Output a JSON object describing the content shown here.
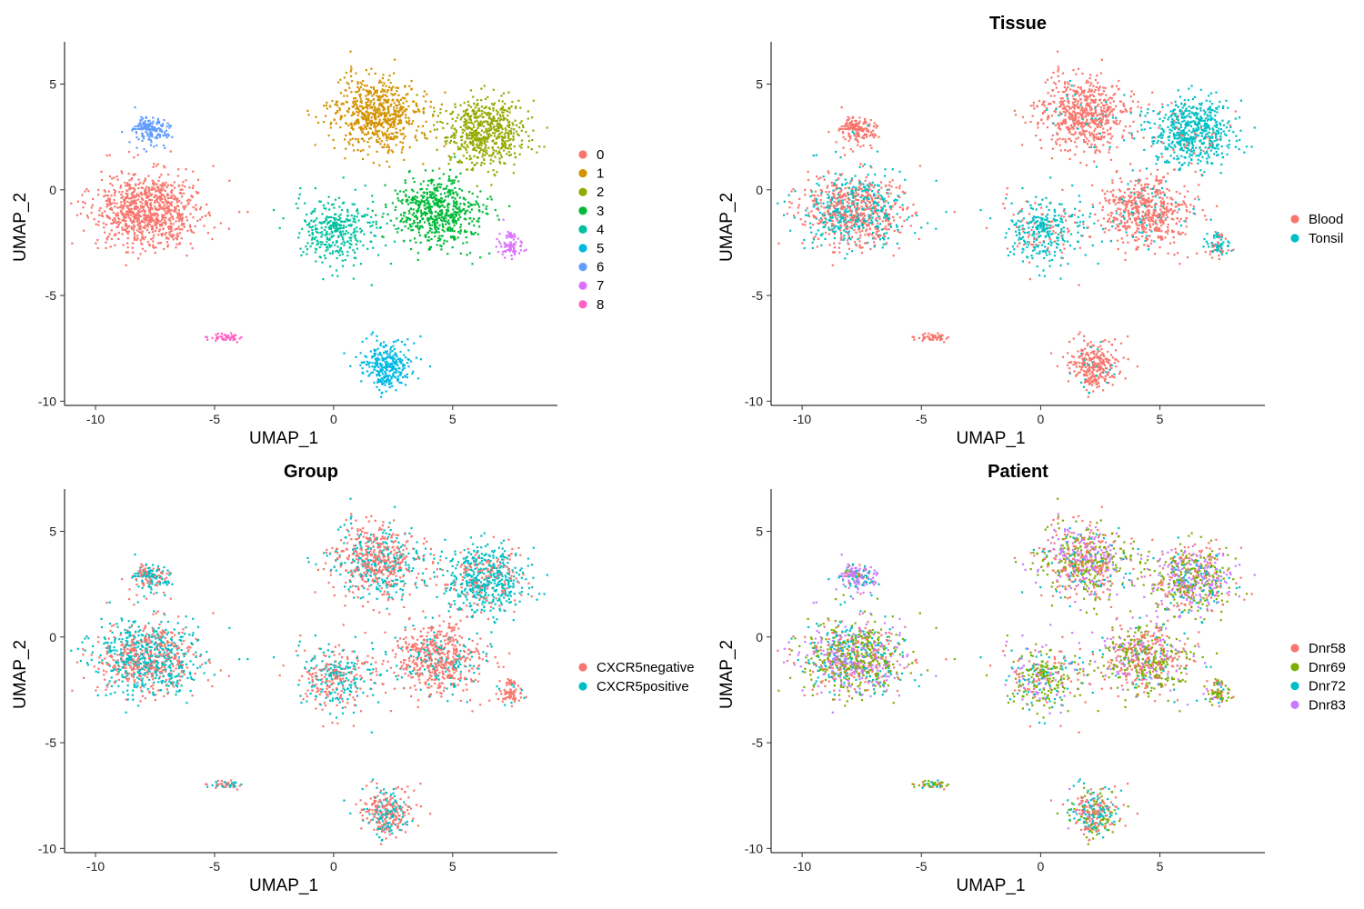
{
  "chart_data": [
    {
      "type": "scatter",
      "title": "",
      "xlabel": "UMAP_1",
      "ylabel": "UMAP_2",
      "xlim": [
        -11.3,
        9.4
      ],
      "ylim": [
        -10.2,
        7.0
      ],
      "xticks": [
        -10,
        -5,
        0,
        5
      ],
      "yticks": [
        -10,
        -5,
        0,
        5
      ],
      "grid": false,
      "legend_position": "right",
      "legend": [
        {
          "label": "0",
          "color": "#F8766D"
        },
        {
          "label": "1",
          "color": "#D39200"
        },
        {
          "label": "2",
          "color": "#93AA00"
        },
        {
          "label": "3",
          "color": "#00BA38"
        },
        {
          "label": "4",
          "color": "#00C19F"
        },
        {
          "label": "5",
          "color": "#00B9E3"
        },
        {
          "label": "6",
          "color": "#619CFF"
        },
        {
          "label": "7",
          "color": "#DB72FB"
        },
        {
          "label": "8",
          "color": "#FF61C3"
        }
      ]
    },
    {
      "type": "scatter",
      "title": "Tissue",
      "xlabel": "UMAP_1",
      "ylabel": "UMAP_2",
      "xlim": [
        -11.3,
        9.4
      ],
      "ylim": [
        -10.2,
        7.0
      ],
      "xticks": [
        -10,
        -5,
        0,
        5
      ],
      "yticks": [
        -10,
        -5,
        0,
        5
      ],
      "grid": false,
      "legend_position": "right",
      "legend": [
        {
          "label": "Blood",
          "color": "#F8766D"
        },
        {
          "label": "Tonsil",
          "color": "#00BFC4"
        }
      ]
    },
    {
      "type": "scatter",
      "title": "Group",
      "xlabel": "UMAP_1",
      "ylabel": "UMAP_2",
      "xlim": [
        -11.3,
        9.4
      ],
      "ylim": [
        -10.2,
        7.0
      ],
      "xticks": [
        -10,
        -5,
        0,
        5
      ],
      "yticks": [
        -10,
        -5,
        0,
        5
      ],
      "grid": false,
      "legend_position": "right",
      "legend": [
        {
          "label": "CXCR5negative",
          "color": "#F8766D"
        },
        {
          "label": "CXCR5positive",
          "color": "#00BFC4"
        }
      ]
    },
    {
      "type": "scatter",
      "title": "Patient",
      "xlabel": "UMAP_1",
      "ylabel": "UMAP_2",
      "xlim": [
        -11.3,
        9.4
      ],
      "ylim": [
        -10.2,
        7.0
      ],
      "xticks": [
        -10,
        -5,
        0,
        5
      ],
      "yticks": [
        -10,
        -5,
        0,
        5
      ],
      "grid": false,
      "legend_position": "right",
      "legend": [
        {
          "label": "Dnr58",
          "color": "#F8766D"
        },
        {
          "label": "Dnr69",
          "color": "#7CAE00"
        },
        {
          "label": "Dnr72",
          "color": "#00BFC4"
        },
        {
          "label": "Dnr83",
          "color": "#C77CFF"
        }
      ]
    }
  ],
  "clusters": [
    {
      "id": 0,
      "center": [
        -7.8,
        -0.9
      ],
      "spread": [
        1.45,
        1.15
      ],
      "points": 900,
      "tissue": {
        "Blood": 0.58,
        "Tonsil": 0.42
      },
      "group": {
        "CXCR5negative": 0.45,
        "CXCR5positive": 0.55
      },
      "patient": {
        "Dnr58": 0.2,
        "Dnr69": 0.35,
        "Dnr72": 0.2,
        "Dnr83": 0.25
      }
    },
    {
      "id": 1,
      "center": [
        1.8,
        3.6
      ],
      "spread": [
        1.3,
        1.1
      ],
      "points": 650,
      "tissue": {
        "Blood": 0.93,
        "Tonsil": 0.07
      },
      "group": {
        "CXCR5negative": 0.6,
        "CXCR5positive": 0.4
      },
      "patient": {
        "Dnr58": 0.3,
        "Dnr69": 0.35,
        "Dnr72": 0.1,
        "Dnr83": 0.25
      }
    },
    {
      "id": 2,
      "center": [
        6.3,
        2.7
      ],
      "spread": [
        1.15,
        1.05
      ],
      "points": 600,
      "tissue": {
        "Blood": 0.08,
        "Tonsil": 0.92
      },
      "group": {
        "CXCR5negative": 0.25,
        "CXCR5positive": 0.75
      },
      "patient": {
        "Dnr58": 0.2,
        "Dnr69": 0.35,
        "Dnr72": 0.15,
        "Dnr83": 0.3
      }
    },
    {
      "id": 3,
      "center": [
        4.4,
        -1.0
      ],
      "spread": [
        1.2,
        1.05
      ],
      "points": 600,
      "tissue": {
        "Blood": 0.85,
        "Tonsil": 0.15
      },
      "group": {
        "CXCR5negative": 0.75,
        "CXCR5positive": 0.25
      },
      "patient": {
        "Dnr58": 0.4,
        "Dnr69": 0.35,
        "Dnr72": 0.1,
        "Dnr83": 0.15
      }
    },
    {
      "id": 4,
      "center": [
        0.2,
        -1.8
      ],
      "spread": [
        1.2,
        1.1
      ],
      "points": 350,
      "tissue": {
        "Blood": 0.2,
        "Tonsil": 0.8
      },
      "group": {
        "CXCR5negative": 0.5,
        "CXCR5positive": 0.5
      },
      "patient": {
        "Dnr58": 0.2,
        "Dnr69": 0.45,
        "Dnr72": 0.2,
        "Dnr83": 0.15
      }
    },
    {
      "id": 5,
      "center": [
        2.2,
        -8.2
      ],
      "spread": [
        0.7,
        0.75
      ],
      "points": 300,
      "tissue": {
        "Blood": 0.9,
        "Tonsil": 0.1
      },
      "group": {
        "CXCR5negative": 0.6,
        "CXCR5positive": 0.4
      },
      "patient": {
        "Dnr58": 0.35,
        "Dnr69": 0.25,
        "Dnr72": 0.35,
        "Dnr83": 0.05
      }
    },
    {
      "id": 6,
      "center": [
        -7.7,
        2.9
      ],
      "spread": [
        0.55,
        0.45
      ],
      "points": 160,
      "tissue": {
        "Blood": 0.97,
        "Tonsil": 0.03
      },
      "group": {
        "CXCR5negative": 0.35,
        "CXCR5positive": 0.65
      },
      "patient": {
        "Dnr58": 0.1,
        "Dnr69": 0.1,
        "Dnr72": 0.25,
        "Dnr83": 0.55
      }
    },
    {
      "id": 7,
      "center": [
        7.4,
        -2.5
      ],
      "spread": [
        0.35,
        0.45
      ],
      "points": 80,
      "tissue": {
        "Blood": 0.4,
        "Tonsil": 0.6
      },
      "group": {
        "CXCR5negative": 0.8,
        "CXCR5positive": 0.2
      },
      "patient": {
        "Dnr58": 0.3,
        "Dnr69": 0.5,
        "Dnr72": 0.1,
        "Dnr83": 0.1
      }
    },
    {
      "id": 8,
      "center": [
        -4.6,
        -6.9
      ],
      "spread": [
        0.45,
        0.12
      ],
      "points": 50,
      "tissue": {
        "Blood": 0.95,
        "Tonsil": 0.05
      },
      "group": {
        "CXCR5negative": 0.5,
        "CXCR5positive": 0.5
      },
      "patient": {
        "Dnr58": 0.2,
        "Dnr69": 0.4,
        "Dnr72": 0.4,
        "Dnr83": 0.0
      }
    }
  ]
}
